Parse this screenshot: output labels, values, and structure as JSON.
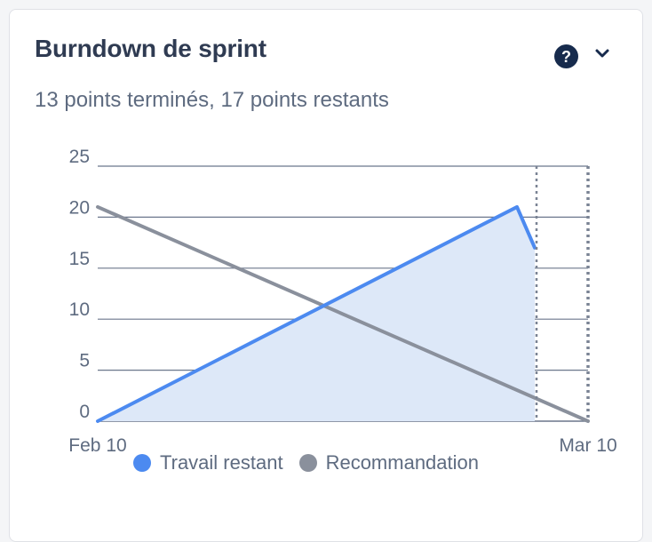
{
  "header": {
    "title": "Burndown de sprint",
    "subtitle": "13 points terminés, 17 points restants",
    "help_icon": "help-circle-icon",
    "help_glyph": "?",
    "menu_icon": "chevron-down-icon"
  },
  "colors": {
    "remaining": "#4c8af0",
    "remaining_fill": "#dde8f8",
    "guideline": "#8a909c",
    "grid": "#6b778c",
    "marker": "#7a8394"
  },
  "chart_data": {
    "type": "line",
    "x_labels": [
      "Feb 10",
      "Mar 10"
    ],
    "ylim": [
      0,
      25
    ],
    "yticks": [
      0,
      5,
      10,
      15,
      20,
      25
    ],
    "xlim": [
      "Feb 10",
      "Mar 10"
    ],
    "grid": true,
    "series": [
      {
        "name": "Travail restant",
        "color": "#4c8af0",
        "filled": true,
        "points": [
          {
            "x": "Feb 10",
            "y": 0
          },
          {
            "x": "Mar 9",
            "y": 21
          },
          {
            "x": "Mar 10",
            "y": 17
          }
        ]
      },
      {
        "name": "Recommandation",
        "color": "#8a909c",
        "filled": false,
        "points": [
          {
            "x": "Feb 10",
            "y": 21
          },
          {
            "x": "Mar 10",
            "y": 0
          }
        ]
      }
    ],
    "markers": [
      {
        "x": "Mar 10",
        "style": "dotted"
      },
      {
        "x": "Mar 10",
        "style": "dotted-end"
      }
    ],
    "legend": {
      "placement": "bottom",
      "items": [
        {
          "label": "Travail restant",
          "color": "#4c8af0"
        },
        {
          "label": "Recommandation",
          "color": "#8a909c"
        }
      ]
    }
  }
}
